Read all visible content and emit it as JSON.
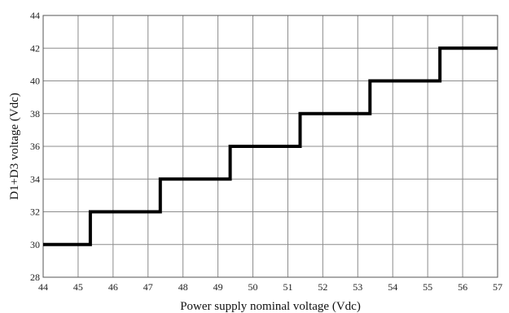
{
  "chart_data": {
    "type": "line",
    "title": "",
    "xlabel": "Power supply nominal voltage  (Vdc)",
    "ylabel": "D1+D3 voltage (Vdc)",
    "xlim": [
      44,
      57
    ],
    "ylim": [
      28,
      44
    ],
    "x_ticks": [
      "44",
      "45",
      "46",
      "47",
      "48",
      "49",
      "50",
      "51",
      "52",
      "53",
      "54",
      "55",
      "56",
      "57"
    ],
    "y_ticks": [
      "28",
      "30",
      "32",
      "34",
      "36",
      "38",
      "40",
      "42",
      "44"
    ],
    "grid": true,
    "legend": "none",
    "series": [
      {
        "step": true,
        "color": "#000000",
        "points": [
          {
            "x": 44,
            "y": 30
          },
          {
            "x": 45.35,
            "y": 30
          },
          {
            "x": 45.35,
            "y": 32
          },
          {
            "x": 47.35,
            "y": 32
          },
          {
            "x": 47.35,
            "y": 34
          },
          {
            "x": 49.35,
            "y": 34
          },
          {
            "x": 49.35,
            "y": 36
          },
          {
            "x": 51.35,
            "y": 36
          },
          {
            "x": 51.35,
            "y": 38
          },
          {
            "x": 53.35,
            "y": 38
          },
          {
            "x": 53.35,
            "y": 40
          },
          {
            "x": 55.35,
            "y": 40
          },
          {
            "x": 55.35,
            "y": 42
          },
          {
            "x": 57,
            "y": 42
          }
        ]
      }
    ]
  }
}
